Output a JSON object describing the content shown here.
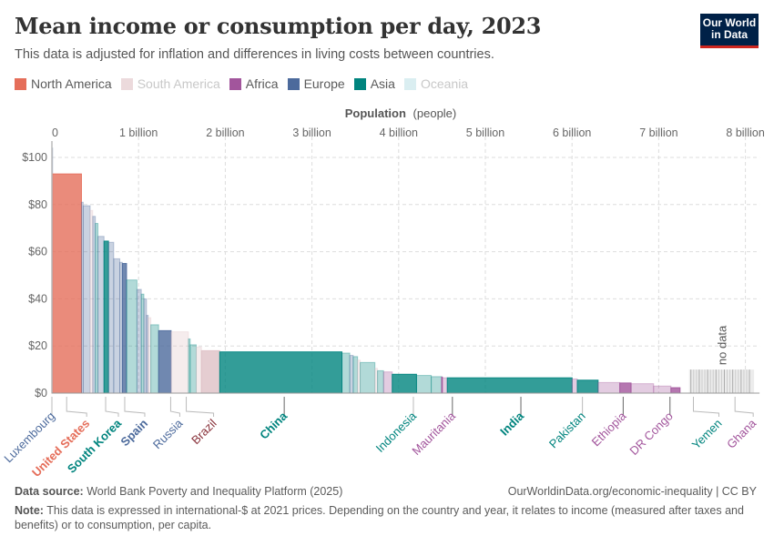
{
  "header": {
    "title": "Mean income or consumption per day, 2023",
    "subtitle": "This data is adjusted for inflation and differences in living costs between countries.",
    "logo_line1": "Our World",
    "logo_line2": "in Data"
  },
  "legend": [
    {
      "label": "North America",
      "color": "#e56e5a",
      "dimmed": false
    },
    {
      "label": "South America",
      "color": "#dfc1c5",
      "dimmed": true
    },
    {
      "label": "Africa",
      "color": "#a2559c",
      "dimmed": false
    },
    {
      "label": "Europe",
      "color": "#4c6a9c",
      "dimmed": false
    },
    {
      "label": "Asia",
      "color": "#00847e",
      "dimmed": false
    },
    {
      "label": "Oceania",
      "color": "#c2e3e7",
      "dimmed": true
    }
  ],
  "footer": {
    "source_label": "Data source:",
    "source_text": "World Bank Poverty and Inequality Platform (2025)",
    "url_text": "OurWorldinData.org/economic-inequality | CC BY",
    "note_label": "Note:",
    "note_text": "This data is expressed in international-$ at 2021 prices. Depending on the country and year, it relates to income (measured after taxes and benefits) or to consumption, per capita."
  },
  "chart_data": {
    "type": "bar",
    "subtype": "variable-width (marimekko)",
    "title": "Mean income or consumption per day, 2023",
    "xlabel_bold": "Population",
    "xlabel_rest": "(people)",
    "ylabel": "",
    "xlim": [
      0,
      8.1
    ],
    "x_unit": "billion people",
    "ylim": [
      0,
      100
    ],
    "x_ticks": [
      {
        "value": 0,
        "label": "0"
      },
      {
        "value": 1,
        "label": "1 billion"
      },
      {
        "value": 2,
        "label": "2 billion"
      },
      {
        "value": 3,
        "label": "3 billion"
      },
      {
        "value": 4,
        "label": "4 billion"
      },
      {
        "value": 5,
        "label": "5 billion"
      },
      {
        "value": 6,
        "label": "6 billion"
      },
      {
        "value": 7,
        "label": "7 billion"
      },
      {
        "value": 8,
        "label": "8 billion"
      }
    ],
    "y_ticks": [
      {
        "value": 0,
        "label": "$0"
      },
      {
        "value": 20,
        "label": "$20"
      },
      {
        "value": 40,
        "label": "$40"
      },
      {
        "value": 60,
        "label": "$60"
      },
      {
        "value": 80,
        "label": "$80"
      },
      {
        "value": 100,
        "label": "$100"
      }
    ],
    "grid": true,
    "legend_position": "top-left",
    "region_colors": {
      "North America": "#e56e5a",
      "South America": "#dfc1c5",
      "Africa": "#a2559c",
      "Europe": "#4c6a9c",
      "Asia": "#00847e",
      "Oceania": "#c2e3e7"
    },
    "bars": [
      {
        "name": "Luxembourg",
        "region": "Europe",
        "population": 0.001,
        "value": 104,
        "highlight": false
      },
      {
        "name": "United States",
        "region": "North America",
        "population": 0.34,
        "value": 93,
        "highlight": true
      },
      {
        "name": "Europe high",
        "region": "Europe",
        "population": 0.02,
        "value": 81,
        "highlight": false
      },
      {
        "name": "Europe high 2",
        "region": "Europe",
        "population": 0.08,
        "value": 79.5,
        "highlight": false
      },
      {
        "name": "South America high",
        "region": "South America",
        "population": 0.03,
        "value": 77.5,
        "highlight": false
      },
      {
        "name": "Europe 3",
        "region": "Europe",
        "population": 0.03,
        "value": 75,
        "highlight": false
      },
      {
        "name": "Asia high",
        "region": "Asia",
        "population": 0.03,
        "value": 72,
        "highlight": false
      },
      {
        "name": "Europe 4",
        "region": "Europe",
        "population": 0.07,
        "value": 66.5,
        "highlight": false
      },
      {
        "name": "South Korea",
        "region": "Asia",
        "population": 0.052,
        "value": 64.5,
        "highlight": true
      },
      {
        "name": "Europe 5",
        "region": "Europe",
        "population": 0.06,
        "value": 64,
        "highlight": false
      },
      {
        "name": "Europe 6",
        "region": "Europe",
        "population": 0.07,
        "value": 57,
        "highlight": false
      },
      {
        "name": "Europe 7",
        "region": "Europe",
        "population": 0.03,
        "value": 55.5,
        "highlight": false
      },
      {
        "name": "Spain",
        "region": "Europe",
        "population": 0.048,
        "value": 55,
        "highlight": true
      },
      {
        "name": "Asia 2",
        "region": "Asia",
        "population": 0.12,
        "value": 48,
        "highlight": false
      },
      {
        "name": "Europe 8",
        "region": "Europe",
        "population": 0.05,
        "value": 44,
        "highlight": false
      },
      {
        "name": "Asia 3",
        "region": "Asia",
        "population": 0.03,
        "value": 42,
        "highlight": false
      },
      {
        "name": "Europe 9",
        "region": "Europe",
        "population": 0.03,
        "value": 40,
        "highlight": false
      },
      {
        "name": "Europe 10",
        "region": "Europe",
        "population": 0.02,
        "value": 33,
        "highlight": false
      },
      {
        "name": "South America 2",
        "region": "South America",
        "population": 0.03,
        "value": 32,
        "highlight": false
      },
      {
        "name": "Asia 4",
        "region": "Asia",
        "population": 0.09,
        "value": 29,
        "highlight": false
      },
      {
        "name": "Russia",
        "region": "Europe",
        "population": 0.144,
        "value": 26.5,
        "highlight": true
      },
      {
        "name": "South America 3",
        "region": "South America",
        "population": 0.2,
        "value": 26,
        "highlight": false
      },
      {
        "name": "Asia 5",
        "region": "Asia",
        "population": 0.02,
        "value": 23,
        "highlight": false
      },
      {
        "name": "Asia 6",
        "region": "Asia",
        "population": 0.07,
        "value": 20.5,
        "highlight": false
      },
      {
        "name": "South America 4",
        "region": "South America",
        "population": 0.06,
        "value": 19.5,
        "highlight": false
      },
      {
        "name": "Brazil",
        "region": "South America",
        "population": 0.211,
        "value": 18,
        "highlight": true
      },
      {
        "name": "China",
        "region": "Asia",
        "population": 1.41,
        "value": 17.5,
        "highlight": true
      },
      {
        "name": "Asia 7",
        "region": "Asia",
        "population": 0.09,
        "value": 17,
        "highlight": false
      },
      {
        "name": "Europe 11",
        "region": "Europe",
        "population": 0.04,
        "value": 16,
        "highlight": false
      },
      {
        "name": "Asia 8",
        "region": "Asia",
        "population": 0.05,
        "value": 15.5,
        "highlight": false
      },
      {
        "name": "South America 5",
        "region": "South America",
        "population": 0.03,
        "value": 14,
        "highlight": false
      },
      {
        "name": "Asia 9",
        "region": "Asia",
        "population": 0.17,
        "value": 13,
        "highlight": false
      },
      {
        "name": "South America 6",
        "region": "South America",
        "population": 0.03,
        "value": 10.5,
        "highlight": false
      },
      {
        "name": "Asia 10",
        "region": "Asia",
        "population": 0.07,
        "value": 9.5,
        "highlight": false
      },
      {
        "name": "Africa 2",
        "region": "Africa",
        "population": 0.1,
        "value": 9,
        "highlight": false
      },
      {
        "name": "Indonesia",
        "region": "Asia",
        "population": 0.28,
        "value": 8,
        "highlight": true
      },
      {
        "name": "Asia 11",
        "region": "Asia",
        "population": 0.17,
        "value": 7.5,
        "highlight": false
      },
      {
        "name": "Asia 12",
        "region": "Asia",
        "population": 0.12,
        "value": 7,
        "highlight": false
      },
      {
        "name": "Mauritania",
        "region": "Africa",
        "population": 0.005,
        "value": 6.8,
        "highlight": true
      },
      {
        "name": "Africa 3",
        "region": "Africa",
        "population": 0.06,
        "value": 6.5,
        "highlight": false
      },
      {
        "name": "India",
        "region": "Asia",
        "population": 1.44,
        "value": 6.5,
        "highlight": true
      },
      {
        "name": "Africa 4",
        "region": "Africa",
        "population": 0.06,
        "value": 6,
        "highlight": false
      },
      {
        "name": "Pakistan",
        "region": "Asia",
        "population": 0.24,
        "value": 5.5,
        "highlight": true
      },
      {
        "name": "Africa 5",
        "region": "Africa",
        "population": 0.25,
        "value": 4.5,
        "highlight": false
      },
      {
        "name": "Ethiopia",
        "region": "Africa",
        "population": 0.13,
        "value": 4.3,
        "highlight": true
      },
      {
        "name": "Africa 6",
        "region": "Africa",
        "population": 0.26,
        "value": 4,
        "highlight": false
      },
      {
        "name": "Africa 7",
        "region": "Africa",
        "population": 0.2,
        "value": 3,
        "highlight": false
      },
      {
        "name": "DR Congo",
        "region": "Africa",
        "population": 0.105,
        "value": 2.3,
        "highlight": true
      }
    ],
    "no_data": {
      "label": "no data",
      "start": 7.35,
      "end": 8.1,
      "value": 10
    },
    "labels": [
      {
        "name": "Luxembourg",
        "region": "Europe",
        "x": 0.0,
        "color": "#4c6a9c",
        "leader": "straight"
      },
      {
        "name": "United States",
        "region": "North America",
        "x": 0.17,
        "color": "#e56e5a",
        "leader": "elbow",
        "bold": true
      },
      {
        "name": "South Korea",
        "region": "Asia",
        "x": 0.62,
        "color": "#00847e",
        "leader": "elbow",
        "bold": true
      },
      {
        "name": "Spain",
        "region": "Europe",
        "x": 0.84,
        "color": "#4c6a9c",
        "leader": "elbow",
        "bold": true
      },
      {
        "name": "Russia",
        "region": "Europe",
        "x": 1.37,
        "color": "#4c6a9c",
        "leader": "elbow"
      },
      {
        "name": "Brazil",
        "region": "South America",
        "x": 1.55,
        "color": "#883039",
        "leader": "elbow"
      },
      {
        "name": "China",
        "region": "Asia",
        "x": 2.68,
        "color": "#00847e",
        "leader": "straight",
        "bold": true
      },
      {
        "name": "Indonesia",
        "region": "Asia",
        "x": 4.17,
        "color": "#00847e",
        "leader": "straight"
      },
      {
        "name": "Mauritania",
        "region": "Africa",
        "x": 4.62,
        "color": "#a2559c",
        "leader": "straight"
      },
      {
        "name": "India",
        "region": "Asia",
        "x": 5.41,
        "color": "#00847e",
        "leader": "straight",
        "bold": true
      },
      {
        "name": "Pakistan",
        "region": "Asia",
        "x": 6.12,
        "color": "#00847e",
        "leader": "straight"
      },
      {
        "name": "Ethiopia",
        "region": "Africa",
        "x": 6.59,
        "color": "#a2559c",
        "leader": "straight"
      },
      {
        "name": "DR Congo",
        "region": "Africa",
        "x": 7.13,
        "color": "#a2559c",
        "leader": "straight"
      },
      {
        "name": "Yemen",
        "region": "Asia",
        "x": 7.4,
        "color": "#00847e",
        "leader": "elbow"
      },
      {
        "name": "Ghana",
        "region": "Africa",
        "x": 7.88,
        "color": "#a2559c",
        "leader": "elbow"
      }
    ]
  }
}
